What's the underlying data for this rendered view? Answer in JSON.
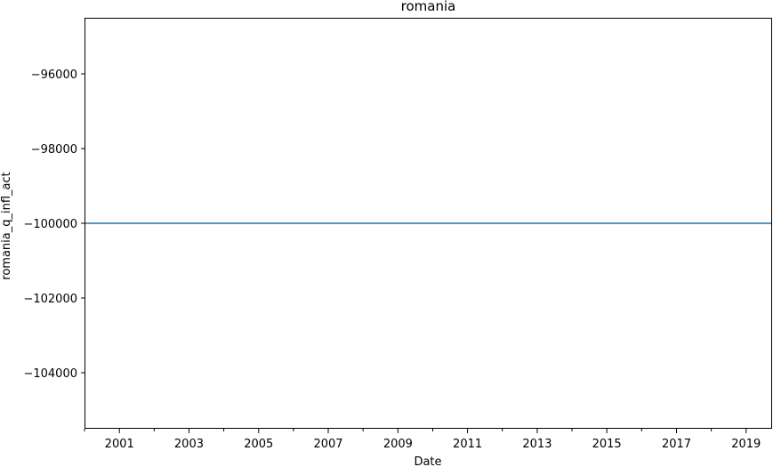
{
  "chart_data": {
    "type": "line",
    "title": "romania",
    "xlabel": "Date",
    "ylabel": "romania_q_infl_act",
    "x_range": [
      "2000-01-01",
      "2019-10-01"
    ],
    "ylim": [
      -105500,
      -94500
    ],
    "x_major_ticks": [
      "2001",
      "2003",
      "2005",
      "2007",
      "2009",
      "2011",
      "2013",
      "2015",
      "2017",
      "2019"
    ],
    "x_minor_ticks": [
      "2000",
      "2002",
      "2004",
      "2006",
      "2008",
      "2010",
      "2012",
      "2014",
      "2016",
      "2018"
    ],
    "y_ticks": [
      -96000,
      -98000,
      -100000,
      -102000,
      -104000
    ],
    "y_tick_labels": [
      "−96000",
      "−98000",
      "−100000",
      "−102000",
      "−104000"
    ],
    "grid": false,
    "series": [
      {
        "color": "#1f77b4",
        "x": [
          "2000-01-01",
          "2019-10-01"
        ],
        "y": [
          -100000,
          -100000
        ]
      }
    ]
  }
}
